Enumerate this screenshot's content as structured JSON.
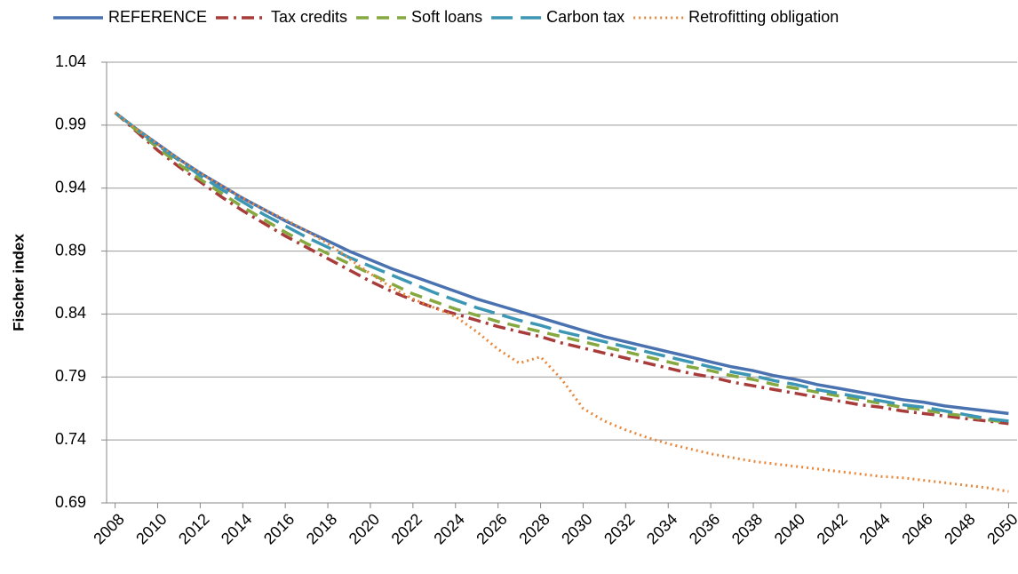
{
  "chart_data": {
    "type": "line",
    "y_label": "Fischer index",
    "x": [
      2008,
      2009,
      2010,
      2011,
      2012,
      2013,
      2014,
      2015,
      2016,
      2017,
      2018,
      2019,
      2020,
      2021,
      2022,
      2023,
      2024,
      2025,
      2026,
      2027,
      2028,
      2029,
      2030,
      2031,
      2032,
      2033,
      2034,
      2035,
      2036,
      2037,
      2038,
      2039,
      2040,
      2041,
      2042,
      2043,
      2044,
      2045,
      2046,
      2047,
      2048,
      2049,
      2050
    ],
    "xlim": [
      2007.6,
      2050.4
    ],
    "xticks": [
      2008,
      2010,
      2012,
      2014,
      2016,
      2018,
      2020,
      2022,
      2024,
      2026,
      2028,
      2030,
      2032,
      2034,
      2036,
      2038,
      2040,
      2042,
      2044,
      2046,
      2048,
      2050
    ],
    "ylim": [
      0.69,
      1.04
    ],
    "yticks": [
      0.69,
      0.74,
      0.79,
      0.84,
      0.89,
      0.94,
      0.99,
      1.04
    ],
    "grid": true,
    "legend": "top",
    "series": [
      {
        "name": "REFERENCE",
        "color": "#4a72b0",
        "dash": "solid",
        "values": [
          1.0,
          0.987,
          0.975,
          0.963,
          0.952,
          0.942,
          0.932,
          0.923,
          0.914,
          0.906,
          0.898,
          0.89,
          0.883,
          0.876,
          0.87,
          0.864,
          0.858,
          0.852,
          0.847,
          0.842,
          0.837,
          0.832,
          0.827,
          0.822,
          0.818,
          0.814,
          0.81,
          0.806,
          0.802,
          0.798,
          0.795,
          0.791,
          0.788,
          0.784,
          0.781,
          0.778,
          0.775,
          0.772,
          0.77,
          0.767,
          0.765,
          0.763,
          0.761
        ]
      },
      {
        "name": "Tax credits",
        "color": "#a83c3a",
        "dash": "dashdot",
        "values": [
          1.0,
          0.985,
          0.97,
          0.957,
          0.945,
          0.933,
          0.922,
          0.912,
          0.902,
          0.893,
          0.884,
          0.875,
          0.866,
          0.858,
          0.851,
          0.845,
          0.84,
          0.835,
          0.83,
          0.826,
          0.822,
          0.817,
          0.813,
          0.809,
          0.805,
          0.801,
          0.797,
          0.793,
          0.79,
          0.786,
          0.783,
          0.78,
          0.777,
          0.774,
          0.771,
          0.768,
          0.766,
          0.763,
          0.761,
          0.759,
          0.757,
          0.755,
          0.753
        ]
      },
      {
        "name": "Soft loans",
        "color": "#86a840",
        "dash": "dashed",
        "values": [
          1.0,
          0.986,
          0.972,
          0.959,
          0.947,
          0.936,
          0.925,
          0.915,
          0.905,
          0.896,
          0.888,
          0.88,
          0.872,
          0.864,
          0.856,
          0.85,
          0.844,
          0.839,
          0.834,
          0.83,
          0.826,
          0.822,
          0.818,
          0.814,
          0.81,
          0.806,
          0.802,
          0.798,
          0.795,
          0.791,
          0.788,
          0.784,
          0.781,
          0.778,
          0.775,
          0.772,
          0.769,
          0.766,
          0.764,
          0.761,
          0.759,
          0.756,
          0.754
        ]
      },
      {
        "name": "Carbon tax",
        "color": "#3c96b4",
        "dash": "longdash",
        "values": [
          1.0,
          0.987,
          0.974,
          0.962,
          0.95,
          0.939,
          0.929,
          0.919,
          0.91,
          0.901,
          0.893,
          0.885,
          0.878,
          0.871,
          0.864,
          0.857,
          0.851,
          0.845,
          0.84,
          0.835,
          0.831,
          0.826,
          0.822,
          0.818,
          0.814,
          0.81,
          0.806,
          0.802,
          0.798,
          0.794,
          0.791,
          0.787,
          0.784,
          0.78,
          0.777,
          0.774,
          0.771,
          0.768,
          0.766,
          0.763,
          0.76,
          0.757,
          0.755
        ]
      },
      {
        "name": "Retrofitting obligation",
        "color": "#e8873a",
        "dash": "dotted",
        "values": [
          1.0,
          0.987,
          0.975,
          0.963,
          0.952,
          0.942,
          0.932,
          0.923,
          0.915,
          0.906,
          0.896,
          0.884,
          0.872,
          0.861,
          0.852,
          0.845,
          0.838,
          0.826,
          0.812,
          0.801,
          0.806,
          0.788,
          0.765,
          0.755,
          0.748,
          0.742,
          0.737,
          0.733,
          0.729,
          0.726,
          0.723,
          0.721,
          0.719,
          0.717,
          0.715,
          0.713,
          0.711,
          0.71,
          0.708,
          0.706,
          0.704,
          0.702,
          0.699
        ]
      }
    ]
  }
}
